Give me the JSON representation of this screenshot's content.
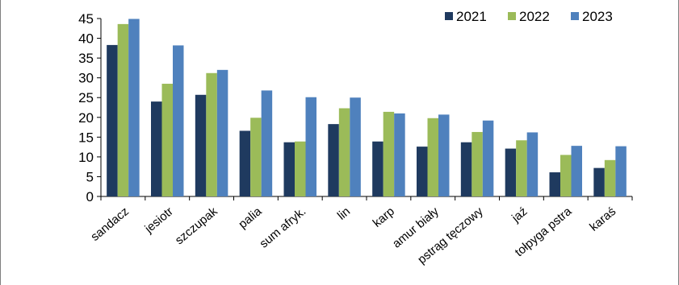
{
  "chart_data": {
    "type": "bar",
    "categories": [
      "sandacz",
      "jesiotr",
      "szczupak",
      "palia",
      "sum afryk.",
      "lin",
      "karp",
      "amur biały",
      "pstrąg tęczowy",
      "jaź",
      "tołpyga pstra",
      "karaś"
    ],
    "series": [
      {
        "name": "2021",
        "color": "#1f3a5f",
        "values": [
          38.3,
          24.0,
          25.7,
          16.6,
          13.7,
          18.3,
          13.9,
          12.6,
          13.7,
          12.1,
          6.1,
          7.2
        ]
      },
      {
        "name": "2022",
        "color": "#9bbb59",
        "values": [
          43.6,
          28.5,
          31.2,
          19.9,
          13.9,
          22.3,
          21.4,
          19.8,
          16.3,
          14.2,
          10.5,
          9.2
        ]
      },
      {
        "name": "2023",
        "color": "#4f81bd",
        "values": [
          44.9,
          38.2,
          32.0,
          26.8,
          25.1,
          25.0,
          21.0,
          20.7,
          19.2,
          16.2,
          12.8,
          12.7
        ]
      }
    ],
    "ylim": [
      0,
      45
    ],
    "yticks": [
      0,
      5,
      10,
      15,
      20,
      25,
      30,
      35,
      40,
      45
    ],
    "grid": false,
    "legend": "top-right",
    "xlabel": "",
    "ylabel": "",
    "title": ""
  }
}
